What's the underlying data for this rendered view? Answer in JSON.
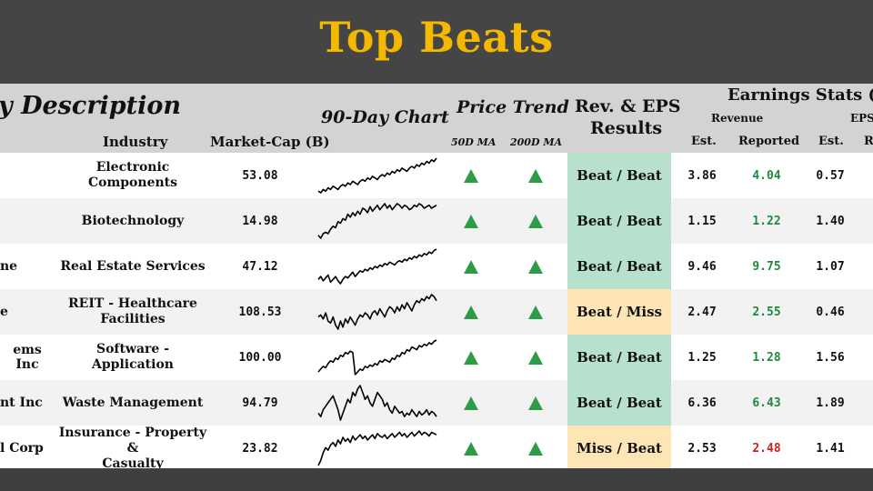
{
  "title": "Top Beats",
  "headers": {
    "company_description": "y Description",
    "industry": "Industry",
    "market_cap": "Market-Cap (B)",
    "chart": "90-Day Chart",
    "price_trend": "Price Trend",
    "ma50": "50D MA",
    "ma200": "200D MA",
    "results_line1": "Rev. & EPS",
    "results_line2": "Results",
    "earnings_stats": "Earnings Stats (B)",
    "revenue": "Revenue",
    "eps": "EPS",
    "est": "Est.",
    "reported": "Reported",
    "eps_est": "Est.",
    "eps_reported_partial": "R"
  },
  "colors": {
    "title": "#f5b800",
    "beat_beat_bg": "#b7e1cd",
    "mixed_bg": "#fde5b5",
    "up_arrow": "#2e9b47",
    "beat_text": "#1e8a3e",
    "miss_text": "#cc2222"
  },
  "rows": [
    {
      "company": "",
      "industry": "Electronic Components",
      "market_cap": "53.08",
      "ma50": "up-triangle-icon",
      "ma200": "up-triangle-icon",
      "result": "Beat / Beat",
      "result_type": "beat",
      "rev_est": "3.86",
      "rev_reported": "4.04",
      "rev_status": "beat",
      "eps_est": "0.57",
      "spark": [
        10,
        9,
        11,
        10,
        12,
        11,
        13,
        12,
        11,
        13,
        14,
        13,
        15,
        14,
        16,
        15,
        14,
        16,
        17,
        16,
        18,
        17,
        19,
        18,
        17,
        19,
        20,
        19,
        21,
        20,
        22,
        21,
        23,
        22,
        24,
        23,
        22,
        24,
        25,
        24,
        26,
        25,
        27,
        26,
        28,
        27,
        29,
        28,
        30
      ]
    },
    {
      "company": "",
      "industry": "Biotechnology",
      "market_cap": "14.98",
      "ma50": "up-triangle-icon",
      "ma200": "up-triangle-icon",
      "result": "Beat / Beat",
      "result_type": "beat",
      "rev_est": "1.15",
      "rev_reported": "1.22",
      "rev_status": "beat",
      "eps_est": "1.40",
      "spark": [
        8,
        6,
        9,
        10,
        9,
        12,
        14,
        13,
        17,
        16,
        19,
        18,
        22,
        20,
        23,
        21,
        24,
        22,
        26,
        25,
        23,
        27,
        24,
        26,
        28,
        25,
        27,
        29,
        26,
        28,
        25,
        27,
        29,
        28,
        26,
        28,
        27,
        25,
        26,
        28,
        27,
        29,
        28,
        26,
        27,
        28,
        26,
        27,
        28
      ]
    },
    {
      "company": "ne",
      "industry": "Real Estate Services",
      "market_cap": "47.12",
      "ma50": "up-triangle-icon",
      "ma200": "up-triangle-icon",
      "result": "Beat / Beat",
      "result_type": "beat",
      "rev_est": "9.46",
      "rev_reported": "9.75",
      "rev_status": "beat",
      "eps_est": "1.07",
      "spark": [
        12,
        14,
        11,
        13,
        15,
        10,
        12,
        14,
        11,
        9,
        12,
        14,
        13,
        15,
        17,
        14,
        16,
        18,
        17,
        19,
        18,
        20,
        19,
        21,
        20,
        22,
        21,
        23,
        22,
        24,
        23,
        22,
        24,
        25,
        24,
        26,
        25,
        27,
        26,
        28,
        27,
        29,
        28,
        30,
        29,
        31,
        30,
        32,
        33
      ]
    },
    {
      "company": "e",
      "industry": "REIT - Healthcare\nFacilities",
      "market_cap": "108.53",
      "ma50": "up-triangle-icon",
      "ma200": "up-triangle-icon",
      "result": "Beat / Miss",
      "result_type": "mixed",
      "rev_est": "2.47",
      "rev_reported": "2.55",
      "rev_status": "beat",
      "eps_est": "0.46",
      "spark": [
        18,
        19,
        17,
        20,
        16,
        15,
        18,
        14,
        12,
        16,
        13,
        17,
        15,
        18,
        16,
        14,
        17,
        19,
        18,
        20,
        19,
        17,
        20,
        21,
        19,
        22,
        20,
        18,
        21,
        23,
        22,
        20,
        23,
        21,
        24,
        22,
        25,
        23,
        21,
        24,
        26,
        25,
        27,
        26,
        28,
        27,
        29,
        28,
        26
      ]
    },
    {
      "company": "ems Inc",
      "industry": "Software - Application",
      "market_cap": "100.00",
      "ma50": "up-triangle-icon",
      "ma200": "up-triangle-icon",
      "result": "Beat / Beat",
      "result_type": "beat",
      "rev_est": "1.25",
      "rev_reported": "1.28",
      "rev_status": "beat",
      "eps_est": "1.56",
      "spark": [
        10,
        12,
        14,
        13,
        16,
        18,
        17,
        20,
        19,
        22,
        21,
        24,
        23,
        25,
        24,
        8,
        10,
        12,
        11,
        14,
        13,
        15,
        14,
        16,
        15,
        18,
        17,
        19,
        18,
        17,
        20,
        19,
        22,
        21,
        24,
        23,
        26,
        25,
        28,
        27,
        26,
        29,
        28,
        30,
        29,
        31,
        30,
        32,
        33
      ]
    },
    {
      "company": "nt Inc",
      "industry": "Waste Management",
      "market_cap": "94.79",
      "ma50": "up-triangle-icon",
      "ma200": "up-triangle-icon",
      "result": "Beat / Beat",
      "result_type": "beat",
      "rev_est": "6.36",
      "rev_reported": "6.43",
      "rev_status": "beat",
      "eps_est": "1.89",
      "spark": [
        14,
        12,
        16,
        18,
        20,
        22,
        24,
        20,
        16,
        10,
        14,
        18,
        22,
        20,
        26,
        24,
        28,
        30,
        26,
        22,
        24,
        20,
        18,
        22,
        26,
        24,
        22,
        18,
        20,
        16,
        14,
        18,
        16,
        14,
        15,
        12,
        14,
        13,
        16,
        14,
        12,
        15,
        13,
        14,
        16,
        13,
        15,
        14,
        12
      ]
    },
    {
      "company": "l Corp",
      "industry": "Insurance - Property &\nCasualty",
      "market_cap": "23.82",
      "ma50": "up-triangle-icon",
      "ma200": "up-triangle-icon",
      "result": "Miss / Beat",
      "result_type": "mixed",
      "rev_est": "2.53",
      "rev_reported": "2.48",
      "rev_status": "miss",
      "eps_est": "1.41",
      "spark": [
        4,
        8,
        14,
        18,
        16,
        20,
        22,
        19,
        24,
        21,
        26,
        23,
        25,
        22,
        27,
        24,
        26,
        28,
        25,
        27,
        24,
        26,
        28,
        25,
        29,
        27,
        26,
        28,
        25,
        27,
        29,
        26,
        28,
        30,
        27,
        29,
        26,
        28,
        30,
        27,
        29,
        31,
        28,
        30,
        29,
        27,
        30,
        29,
        28
      ]
    }
  ]
}
